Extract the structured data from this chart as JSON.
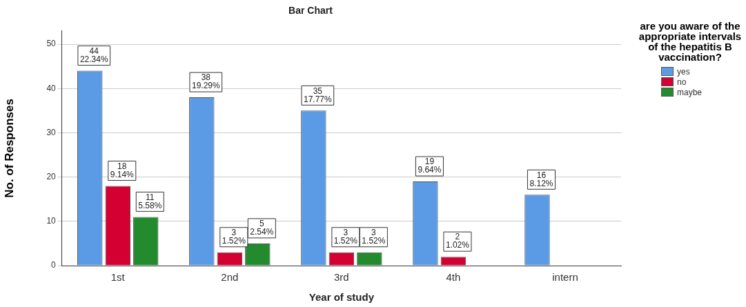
{
  "chart_data": {
    "type": "bar",
    "title": "Bar Chart",
    "xlabel": "Year of study",
    "ylabel": "No. of Responses",
    "legend_title": "are you aware of the appropriate intervals of the hepatitis B vaccination?",
    "categories": [
      "1st",
      "2nd",
      "3rd",
      "4th",
      "intern"
    ],
    "series": [
      {
        "name": "yes",
        "color": "#5b9be6",
        "values": [
          44,
          38,
          35,
          19,
          16
        ],
        "value_labels": [
          "44\n22.34%",
          "38\n19.29%",
          "35\n17.77%",
          "19\n9.64%",
          "16\n8.12%"
        ]
      },
      {
        "name": "no",
        "color": "#d50032",
        "values": [
          18,
          3,
          3,
          2,
          null
        ],
        "value_labels": [
          "18\n9.14%",
          "3\n1.52%",
          "3\n1.52%",
          "2\n1.02%",
          null
        ]
      },
      {
        "name": "maybe",
        "color": "#238b2e",
        "values": [
          11,
          5,
          3,
          null,
          null
        ],
        "value_labels": [
          "11\n5.58%",
          "5\n2.54%",
          "3\n1.52%",
          null,
          null
        ]
      }
    ],
    "ylim": [
      0,
      53
    ],
    "yticks": [
      0,
      10,
      20,
      30,
      40,
      50
    ],
    "grid": "y",
    "legend": "right"
  }
}
